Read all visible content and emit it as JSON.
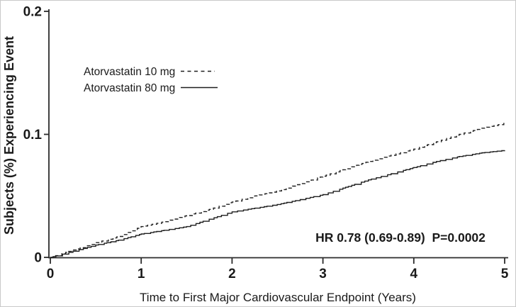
{
  "chart_data": {
    "type": "line",
    "subtype": "kaplan-meier-cumulative-incidence",
    "title": "",
    "xlabel": "Time to First Major Cardiovascular Endpoint (Years)",
    "ylabel": "Subjects (%) Experiencing Event",
    "xlim": [
      0,
      5
    ],
    "ylim": [
      0,
      0.2
    ],
    "x_ticks": [
      0,
      1,
      2,
      3,
      4,
      5
    ],
    "x_tick_labels": [
      "0",
      "1",
      "2",
      "3",
      "4",
      "5"
    ],
    "y_ticks": [
      0,
      0.1,
      0.2
    ],
    "y_tick_labels": [
      "0",
      "0.1",
      "0.2"
    ],
    "grid": false,
    "legend_position": "upper-left-inside",
    "annotation": "HR 0.78 (0.69-0.89)  P=0.0002",
    "hazard_ratio": "0.78",
    "confidence_interval": "0.69-0.89",
    "p_value": "0.0002",
    "series": [
      {
        "name": "Atorvastatin 10 mg",
        "style": "dashed",
        "x": [
          0,
          0.25,
          0.5,
          0.75,
          1,
          1.25,
          1.5,
          1.75,
          2,
          2.25,
          2.5,
          2.75,
          3,
          3.25,
          3.5,
          3.75,
          4,
          4.25,
          4.5,
          4.75,
          5
        ],
        "y": [
          0,
          0.006,
          0.012,
          0.017,
          0.025,
          0.029,
          0.034,
          0.039,
          0.045,
          0.05,
          0.054,
          0.06,
          0.066,
          0.072,
          0.078,
          0.083,
          0.088,
          0.094,
          0.1,
          0.105,
          0.109
        ]
      },
      {
        "name": "Atorvastatin 80 mg",
        "style": "solid",
        "x": [
          0,
          0.25,
          0.5,
          0.75,
          1,
          1.25,
          1.5,
          1.75,
          2,
          2.25,
          2.5,
          2.75,
          3,
          3.25,
          3.5,
          3.75,
          4,
          4.25,
          4.5,
          4.75,
          5
        ],
        "y": [
          0,
          0.005,
          0.01,
          0.014,
          0.019,
          0.022,
          0.025,
          0.031,
          0.037,
          0.04,
          0.043,
          0.047,
          0.051,
          0.057,
          0.063,
          0.068,
          0.073,
          0.078,
          0.082,
          0.085,
          0.087
        ]
      }
    ],
    "colors": {
      "line": "#1f1f1f",
      "axis": "#2b2b2b",
      "text": "#1a1a1a",
      "background": "#ffffff"
    }
  }
}
